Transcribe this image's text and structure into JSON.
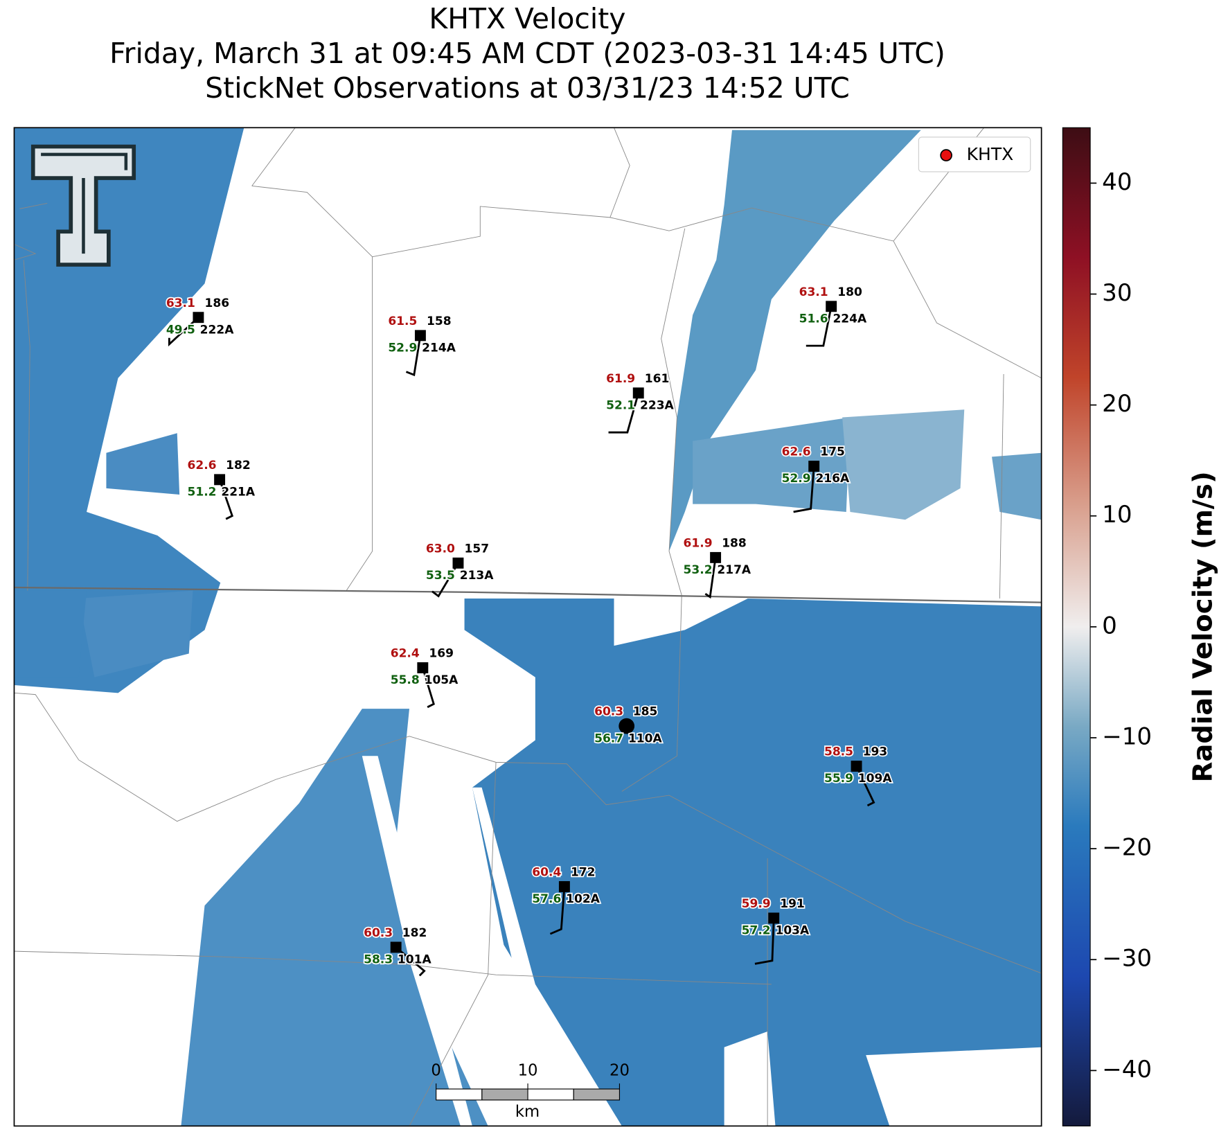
{
  "title": [
    "KHTX Velocity",
    "Friday, March 31 at 09:45 AM CDT (2023-03-31 14:45 UTC)",
    "StickNet Observations at 03/31/23 14:52 UTC"
  ],
  "legend": "KHTX",
  "stations": [
    {
      "id": "222A",
      "temperature": 63.1,
      "dewpoint": 49.5,
      "value": 186
    },
    {
      "id": "214A",
      "temperature": 61.5,
      "dewpoint": 52.9,
      "value": 158
    },
    {
      "id": "223A",
      "temperature": 61.9,
      "dewpoint": 52.1,
      "value": 161
    },
    {
      "id": "224A",
      "temperature": 63.1,
      "dewpoint": 51.6,
      "value": 180
    },
    {
      "id": "221A",
      "temperature": 62.6,
      "dewpoint": 51.2,
      "value": 182
    },
    {
      "id": "216A",
      "temperature": 62.6,
      "dewpoint": 52.9,
      "value": 175
    },
    {
      "id": "213A",
      "temperature": 63.0,
      "dewpoint": 53.5,
      "value": 157
    },
    {
      "id": "217A",
      "temperature": 61.9,
      "dewpoint": 53.2,
      "value": 188
    },
    {
      "id": "105A",
      "temperature": 62.4,
      "dewpoint": 55.8,
      "value": 169
    },
    {
      "id": "110A",
      "temperature": 60.3,
      "dewpoint": 56.7,
      "value": 185
    },
    {
      "id": "109A",
      "temperature": 58.5,
      "dewpoint": 55.9,
      "value": 193
    },
    {
      "id": "102A",
      "temperature": 60.4,
      "dewpoint": 57.6,
      "value": 172
    },
    {
      "id": "103A",
      "temperature": 59.9,
      "dewpoint": 57.2,
      "value": 191
    },
    {
      "id": "101A",
      "temperature": 60.3,
      "dewpoint": 58.3,
      "value": 182
    }
  ],
  "colorbar": {
    "label": "Radial Velocity (m/s)",
    "limits": [
      -45,
      45
    ],
    "ticks": [
      -40,
      -30,
      -20,
      -10,
      0,
      10,
      20,
      30,
      40
    ]
  },
  "scale_bar": {
    "ticks": [
      0,
      10,
      20
    ],
    "unit": "km"
  }
}
